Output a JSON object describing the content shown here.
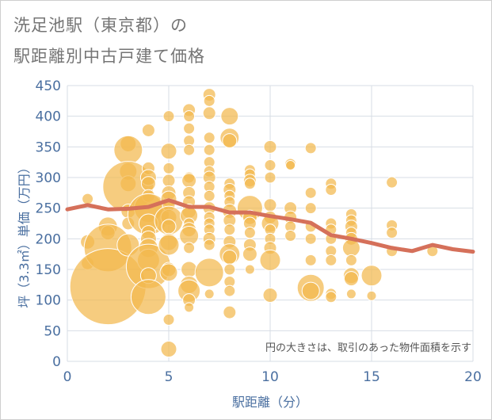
{
  "title": {
    "line1": "洗足池駅（東京都）の",
    "line2": "駅距離別中古戸建て価格"
  },
  "chart_data": {
    "type": "scatter",
    "xlabel": "駅距離（分）",
    "ylabel": "坪（3.3㎡）単価（万円）",
    "xlim": [
      0,
      20
    ],
    "ylim": [
      0,
      450
    ],
    "x_ticks": [
      0,
      5,
      10,
      15,
      20
    ],
    "y_ticks": [
      0,
      50,
      100,
      150,
      200,
      250,
      300,
      350,
      400,
      450
    ],
    "grid": true,
    "annotation": "円の大きさは、取引のあった物件面積を示す",
    "colors": {
      "bubble_fill": "#f3b94d",
      "bubble_edge": "#ffffff",
      "trend_line": "#d5705a",
      "axis_text": "#4a6fa0",
      "grid": "#d7dde5"
    },
    "bubbles": [
      {
        "x": 1,
        "y": 265,
        "r": 7
      },
      {
        "x": 1,
        "y": 195,
        "r": 9
      },
      {
        "x": 1,
        "y": 160,
        "r": 8
      },
      {
        "x": 2,
        "y": 220,
        "r": 12
      },
      {
        "x": 2,
        "y": 210,
        "r": 9
      },
      {
        "x": 2,
        "y": 185,
        "r": 30
      },
      {
        "x": 2,
        "y": 122,
        "r": 48
      },
      {
        "x": 3,
        "y": 355,
        "r": 10
      },
      {
        "x": 3,
        "y": 345,
        "r": 18
      },
      {
        "x": 3,
        "y": 310,
        "r": 11
      },
      {
        "x": 3,
        "y": 290,
        "r": 10
      },
      {
        "x": 3,
        "y": 285,
        "r": 32
      },
      {
        "x": 3,
        "y": 245,
        "r": 9
      },
      {
        "x": 3,
        "y": 225,
        "r": 8
      },
      {
        "x": 3,
        "y": 190,
        "r": 14
      },
      {
        "x": 4,
        "y": 377,
        "r": 8
      },
      {
        "x": 4,
        "y": 315,
        "r": 8
      },
      {
        "x": 4,
        "y": 300,
        "r": 10
      },
      {
        "x": 4,
        "y": 290,
        "r": 9
      },
      {
        "x": 4,
        "y": 270,
        "r": 8
      },
      {
        "x": 4,
        "y": 250,
        "r": 18
      },
      {
        "x": 4,
        "y": 240,
        "r": 26
      },
      {
        "x": 4,
        "y": 225,
        "r": 12
      },
      {
        "x": 4,
        "y": 210,
        "r": 9
      },
      {
        "x": 4,
        "y": 200,
        "r": 10
      },
      {
        "x": 4,
        "y": 185,
        "r": 12
      },
      {
        "x": 4,
        "y": 165,
        "r": 14
      },
      {
        "x": 4,
        "y": 155,
        "r": 28
      },
      {
        "x": 4,
        "y": 140,
        "r": 10
      },
      {
        "x": 4,
        "y": 105,
        "r": 22
      },
      {
        "x": 5,
        "y": 400,
        "r": 7
      },
      {
        "x": 5,
        "y": 343,
        "r": 10
      },
      {
        "x": 5,
        "y": 315,
        "r": 7
      },
      {
        "x": 5,
        "y": 295,
        "r": 8
      },
      {
        "x": 5,
        "y": 275,
        "r": 9
      },
      {
        "x": 5,
        "y": 265,
        "r": 10
      },
      {
        "x": 5,
        "y": 255,
        "r": 8
      },
      {
        "x": 5,
        "y": 235,
        "r": 10
      },
      {
        "x": 5,
        "y": 230,
        "r": 18
      },
      {
        "x": 5,
        "y": 220,
        "r": 9
      },
      {
        "x": 5,
        "y": 195,
        "r": 11
      },
      {
        "x": 5,
        "y": 190,
        "r": 13
      },
      {
        "x": 5,
        "y": 150,
        "r": 9
      },
      {
        "x": 5,
        "y": 145,
        "r": 11
      },
      {
        "x": 5,
        "y": 68,
        "r": 7
      },
      {
        "x": 5,
        "y": 20,
        "r": 10
      },
      {
        "x": 6,
        "y": 410,
        "r": 8
      },
      {
        "x": 6,
        "y": 400,
        "r": 7
      },
      {
        "x": 6,
        "y": 380,
        "r": 7
      },
      {
        "x": 6,
        "y": 360,
        "r": 7
      },
      {
        "x": 6,
        "y": 345,
        "r": 7
      },
      {
        "x": 6,
        "y": 300,
        "r": 7
      },
      {
        "x": 6,
        "y": 295,
        "r": 9
      },
      {
        "x": 6,
        "y": 275,
        "r": 8
      },
      {
        "x": 6,
        "y": 260,
        "r": 8
      },
      {
        "x": 6,
        "y": 245,
        "r": 9
      },
      {
        "x": 6,
        "y": 238,
        "r": 11
      },
      {
        "x": 6,
        "y": 225,
        "r": 7
      },
      {
        "x": 6,
        "y": 215,
        "r": 9
      },
      {
        "x": 6,
        "y": 205,
        "r": 12
      },
      {
        "x": 6,
        "y": 185,
        "r": 7
      },
      {
        "x": 6,
        "y": 150,
        "r": 10
      },
      {
        "x": 6,
        "y": 125,
        "r": 11
      },
      {
        "x": 6,
        "y": 115,
        "r": 14
      },
      {
        "x": 6,
        "y": 100,
        "r": 8
      },
      {
        "x": 6,
        "y": 88,
        "r": 6
      },
      {
        "x": 7,
        "y": 435,
        "r": 8
      },
      {
        "x": 7,
        "y": 425,
        "r": 7
      },
      {
        "x": 7,
        "y": 405,
        "r": 8
      },
      {
        "x": 7,
        "y": 365,
        "r": 7
      },
      {
        "x": 7,
        "y": 345,
        "r": 7
      },
      {
        "x": 7,
        "y": 325,
        "r": 7
      },
      {
        "x": 7,
        "y": 310,
        "r": 7
      },
      {
        "x": 7,
        "y": 300,
        "r": 8
      },
      {
        "x": 7,
        "y": 285,
        "r": 7
      },
      {
        "x": 7,
        "y": 270,
        "r": 7
      },
      {
        "x": 7,
        "y": 250,
        "r": 8
      },
      {
        "x": 7,
        "y": 235,
        "r": 7
      },
      {
        "x": 7,
        "y": 225,
        "r": 7
      },
      {
        "x": 7,
        "y": 215,
        "r": 7
      },
      {
        "x": 7,
        "y": 200,
        "r": 8
      },
      {
        "x": 7,
        "y": 190,
        "r": 7
      },
      {
        "x": 7,
        "y": 145,
        "r": 18
      },
      {
        "x": 7,
        "y": 110,
        "r": 6
      },
      {
        "x": 8,
        "y": 400,
        "r": 11
      },
      {
        "x": 8,
        "y": 365,
        "r": 12
      },
      {
        "x": 8,
        "y": 360,
        "r": 9
      },
      {
        "x": 8,
        "y": 290,
        "r": 7
      },
      {
        "x": 8,
        "y": 280,
        "r": 8
      },
      {
        "x": 8,
        "y": 270,
        "r": 7
      },
      {
        "x": 8,
        "y": 260,
        "r": 7
      },
      {
        "x": 8,
        "y": 245,
        "r": 9
      },
      {
        "x": 8,
        "y": 230,
        "r": 8
      },
      {
        "x": 8,
        "y": 215,
        "r": 7
      },
      {
        "x": 8,
        "y": 195,
        "r": 8
      },
      {
        "x": 8,
        "y": 175,
        "r": 13
      },
      {
        "x": 8,
        "y": 170,
        "r": 9
      },
      {
        "x": 8,
        "y": 150,
        "r": 7
      },
      {
        "x": 8,
        "y": 130,
        "r": 7
      },
      {
        "x": 8,
        "y": 115,
        "r": 7
      },
      {
        "x": 8,
        "y": 80,
        "r": 8
      },
      {
        "x": 9,
        "y": 312,
        "r": 7
      },
      {
        "x": 9,
        "y": 305,
        "r": 7
      },
      {
        "x": 9,
        "y": 295,
        "r": 8
      },
      {
        "x": 9,
        "y": 290,
        "r": 7
      },
      {
        "x": 9,
        "y": 250,
        "r": 16
      },
      {
        "x": 9,
        "y": 235,
        "r": 9
      },
      {
        "x": 9,
        "y": 225,
        "r": 8
      },
      {
        "x": 9,
        "y": 210,
        "r": 7
      },
      {
        "x": 9,
        "y": 190,
        "r": 8
      },
      {
        "x": 9,
        "y": 175,
        "r": 9
      },
      {
        "x": 9,
        "y": 150,
        "r": 6
      },
      {
        "x": 10,
        "y": 350,
        "r": 8
      },
      {
        "x": 10,
        "y": 320,
        "r": 7
      },
      {
        "x": 10,
        "y": 300,
        "r": 7
      },
      {
        "x": 10,
        "y": 255,
        "r": 8
      },
      {
        "x": 10,
        "y": 235,
        "r": 8
      },
      {
        "x": 10,
        "y": 225,
        "r": 11
      },
      {
        "x": 10,
        "y": 215,
        "r": 7
      },
      {
        "x": 10,
        "y": 200,
        "r": 7
      },
      {
        "x": 10,
        "y": 185,
        "r": 8
      },
      {
        "x": 10,
        "y": 165,
        "r": 13
      },
      {
        "x": 10,
        "y": 108,
        "r": 9
      },
      {
        "x": 11,
        "y": 322,
        "r": 7
      },
      {
        "x": 11,
        "y": 320,
        "r": 6
      },
      {
        "x": 11,
        "y": 250,
        "r": 8
      },
      {
        "x": 11,
        "y": 235,
        "r": 8
      },
      {
        "x": 11,
        "y": 220,
        "r": 7
      },
      {
        "x": 11,
        "y": 205,
        "r": 7
      },
      {
        "x": 12,
        "y": 348,
        "r": 7
      },
      {
        "x": 12,
        "y": 275,
        "r": 7
      },
      {
        "x": 12,
        "y": 250,
        "r": 7
      },
      {
        "x": 12,
        "y": 220,
        "r": 7
      },
      {
        "x": 12,
        "y": 200,
        "r": 7
      },
      {
        "x": 12,
        "y": 165,
        "r": 7
      },
      {
        "x": 12,
        "y": 120,
        "r": 17
      },
      {
        "x": 12,
        "y": 115,
        "r": 11
      },
      {
        "x": 13,
        "y": 290,
        "r": 7
      },
      {
        "x": 13,
        "y": 280,
        "r": 7
      },
      {
        "x": 13,
        "y": 225,
        "r": 7
      },
      {
        "x": 13,
        "y": 215,
        "r": 7
      },
      {
        "x": 13,
        "y": 200,
        "r": 7
      },
      {
        "x": 13,
        "y": 180,
        "r": 7
      },
      {
        "x": 13,
        "y": 165,
        "r": 7
      },
      {
        "x": 13,
        "y": 110,
        "r": 7
      },
      {
        "x": 13,
        "y": 105,
        "r": 7
      },
      {
        "x": 14,
        "y": 240,
        "r": 7
      },
      {
        "x": 14,
        "y": 230,
        "r": 7
      },
      {
        "x": 14,
        "y": 220,
        "r": 8
      },
      {
        "x": 14,
        "y": 210,
        "r": 7
      },
      {
        "x": 14,
        "y": 200,
        "r": 8
      },
      {
        "x": 14,
        "y": 185,
        "r": 11
      },
      {
        "x": 14,
        "y": 165,
        "r": 7
      },
      {
        "x": 14,
        "y": 140,
        "r": 10
      },
      {
        "x": 14,
        "y": 135,
        "r": 9
      },
      {
        "x": 14,
        "y": 110,
        "r": 6
      },
      {
        "x": 15,
        "y": 140,
        "r": 13
      },
      {
        "x": 15,
        "y": 107,
        "r": 6
      },
      {
        "x": 16,
        "y": 292,
        "r": 7
      },
      {
        "x": 16,
        "y": 222,
        "r": 7
      },
      {
        "x": 16,
        "y": 210,
        "r": 7
      },
      {
        "x": 16,
        "y": 180,
        "r": 7
      },
      {
        "x": 18,
        "y": 180,
        "r": 7
      }
    ],
    "trend": {
      "x": [
        0,
        1,
        2,
        3,
        4,
        5,
        6,
        7,
        8,
        9,
        10,
        11,
        12,
        13,
        14,
        15,
        16,
        17,
        18,
        19,
        20
      ],
      "y": [
        248,
        255,
        248,
        249,
        252,
        263,
        252,
        252,
        243,
        243,
        237,
        232,
        226,
        206,
        200,
        193,
        185,
        180,
        190,
        183,
        179
      ]
    }
  }
}
